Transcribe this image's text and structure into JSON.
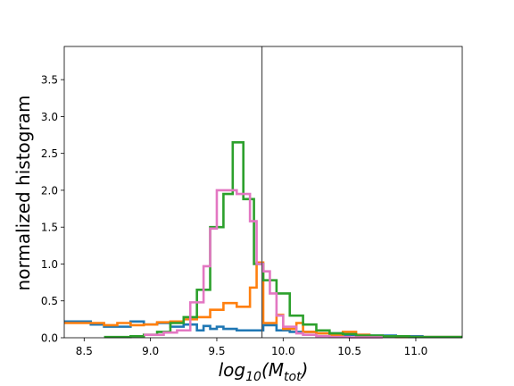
{
  "chart_data": {
    "type": "histogram",
    "title": "",
    "xlabel_parts": {
      "base": "log",
      "sub1": "10",
      "mid": "(M",
      "sub2": "tot",
      "end": ")"
    },
    "ylabel": "normalized histogram",
    "xlim": [
      8.35,
      11.35
    ],
    "ylim": [
      0,
      3.95
    ],
    "xticks": [
      8.5,
      9.0,
      9.5,
      10.0,
      10.5,
      11.0
    ],
    "xtick_labels": [
      "8.5",
      "9.0",
      "9.5",
      "10.0",
      "10.5",
      "11.0"
    ],
    "yticks": [
      0.0,
      0.5,
      1.0,
      1.5,
      2.0,
      2.5,
      3.0,
      3.5
    ],
    "ytick_labels": [
      "0.0",
      "0.5",
      "1.0",
      "1.5",
      "2.0",
      "2.5",
      "3.0",
      "3.5"
    ],
    "vline_x": 9.84,
    "vline_color": "#555555",
    "series": [
      {
        "color": "#1f77b4",
        "edges": [
          8.35,
          8.55,
          8.65,
          8.75,
          8.85,
          8.95,
          9.05,
          9.15,
          9.25,
          9.35,
          9.4,
          9.45,
          9.5,
          9.55,
          9.65,
          9.75,
          9.85,
          9.95,
          10.05,
          10.25,
          10.45,
          10.65,
          10.85,
          11.05,
          11.35
        ],
        "values": [
          0.22,
          0.18,
          0.15,
          0.15,
          0.22,
          0.18,
          0.2,
          0.15,
          0.18,
          0.1,
          0.16,
          0.12,
          0.15,
          0.12,
          0.1,
          0.1,
          0.17,
          0.1,
          0.08,
          0.06,
          0.04,
          0.03,
          0.02,
          0.01
        ]
      },
      {
        "color": "#ff7f0e",
        "edges": [
          8.35,
          8.65,
          8.75,
          8.85,
          8.95,
          9.05,
          9.15,
          9.25,
          9.35,
          9.45,
          9.55,
          9.65,
          9.75,
          9.8,
          9.85,
          9.95,
          10.0,
          10.1,
          10.15,
          10.25,
          10.35,
          10.45,
          10.55,
          10.65,
          10.85,
          11.35
        ],
        "values": [
          0.2,
          0.17,
          0.2,
          0.17,
          0.18,
          0.21,
          0.22,
          0.25,
          0.28,
          0.38,
          0.47,
          0.42,
          0.68,
          1.02,
          0.2,
          0.31,
          0.12,
          0.2,
          0.08,
          0.06,
          0.04,
          0.08,
          0.04,
          0.02,
          0.01
        ]
      },
      {
        "color": "#2ca02c",
        "edges": [
          8.65,
          8.85,
          8.95,
          9.05,
          9.15,
          9.25,
          9.35,
          9.45,
          9.55,
          9.62,
          9.7,
          9.78,
          9.85,
          9.95,
          10.05,
          10.15,
          10.25,
          10.35,
          10.45,
          10.55,
          10.75,
          10.95,
          11.35
        ],
        "values": [
          0.01,
          0.02,
          0.04,
          0.08,
          0.2,
          0.28,
          0.65,
          1.5,
          1.95,
          2.65,
          1.88,
          1.0,
          0.78,
          0.6,
          0.3,
          0.18,
          0.1,
          0.06,
          0.05,
          0.03,
          0.02,
          0.01
        ]
      },
      {
        "color": "#e377c2",
        "edges": [
          8.95,
          9.1,
          9.2,
          9.3,
          9.4,
          9.45,
          9.5,
          9.57,
          9.65,
          9.75,
          9.8,
          9.85,
          9.9,
          9.95,
          10.0,
          10.1,
          10.15,
          10.25,
          10.35,
          10.5,
          10.75
        ],
        "values": [
          0.04,
          0.07,
          0.1,
          0.48,
          0.97,
          1.48,
          2.0,
          2.0,
          1.95,
          1.58,
          1.0,
          0.9,
          0.6,
          0.3,
          0.15,
          0.06,
          0.04,
          0.02,
          0.01,
          0.005
        ]
      }
    ]
  }
}
